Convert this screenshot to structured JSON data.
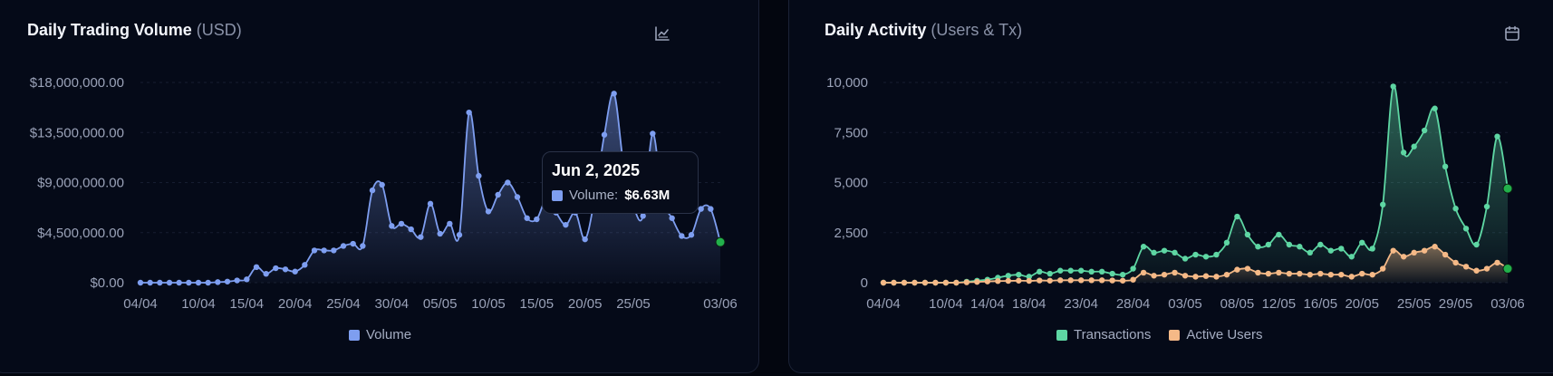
{
  "volume_card": {
    "title": "Daily Trading Volume",
    "subtitle": "(USD)",
    "icon": "line-chart-icon",
    "legend": "Volume",
    "tooltip": {
      "date": "Jun 2, 2025",
      "label": "Volume:",
      "value": "$6.63M"
    }
  },
  "activity_card": {
    "title": "Daily Activity",
    "subtitle": "(Users & Tx)",
    "icon": "calendar-icon",
    "legend": [
      "Transactions",
      "Active Users"
    ]
  },
  "chart_data": [
    {
      "type": "area",
      "y_ticks": [
        "$0.00",
        "$4,500,000.00",
        "$9,000,000.00",
        "$13,500,000.00",
        "$18,000,000.00"
      ],
      "ylim": [
        0,
        18000000
      ],
      "x_ticks": [
        "04/04",
        "10/04",
        "15/04",
        "20/04",
        "25/04",
        "30/04",
        "05/05",
        "10/05",
        "15/05",
        "20/05",
        "25/05",
        "03/06"
      ],
      "grid": "horizontal dashed",
      "legend_position": "bottom",
      "color": "#7e9ef0",
      "series": [
        {
          "name": "Volume",
          "x": [
            "04/04",
            "05/04",
            "06/04",
            "07/04",
            "08/04",
            "09/04",
            "10/04",
            "11/04",
            "12/04",
            "13/04",
            "14/04",
            "15/04",
            "16/04",
            "17/04",
            "18/04",
            "19/04",
            "20/04",
            "21/04",
            "22/04",
            "23/04",
            "24/04",
            "25/04",
            "26/04",
            "27/04",
            "28/04",
            "29/04",
            "30/04",
            "01/05",
            "02/05",
            "03/05",
            "04/05",
            "05/05",
            "06/05",
            "07/05",
            "08/05",
            "09/05",
            "10/05",
            "11/05",
            "12/05",
            "13/05",
            "14/05",
            "15/05",
            "16/05",
            "17/05",
            "18/05",
            "19/05",
            "20/05",
            "21/05",
            "22/05",
            "23/05",
            "24/05",
            "25/05",
            "26/05",
            "27/05",
            "28/05",
            "29/05",
            "30/05",
            "31/05",
            "01/06",
            "02/06",
            "03/06"
          ],
          "values": [
            0,
            0,
            0,
            0,
            0,
            0,
            0,
            0,
            50000,
            100000,
            200000,
            300000,
            1400000,
            800000,
            1300000,
            1200000,
            1000000,
            1600000,
            2900000,
            2900000,
            2900000,
            3300000,
            3500000,
            3300000,
            8300000,
            8800000,
            5100000,
            5300000,
            4800000,
            4100000,
            7100000,
            4400000,
            5300000,
            4300000,
            15300000,
            9600000,
            6400000,
            7900000,
            9000000,
            7700000,
            5800000,
            5700000,
            7500000,
            6300000,
            5200000,
            6300000,
            3900000,
            7600000,
            13300000,
            17000000,
            10500000,
            6900000,
            6000000,
            13400000,
            7500000,
            5800000,
            4200000,
            4300000,
            6630000,
            6630000,
            3650000
          ]
        }
      ]
    },
    {
      "type": "area",
      "y_ticks": [
        "0",
        "2,500",
        "5,000",
        "7,500",
        "10,000"
      ],
      "ylim": [
        0,
        10000
      ],
      "x_ticks": [
        "04/04",
        "10/04",
        "14/04",
        "18/04",
        "23/04",
        "28/04",
        "03/05",
        "08/05",
        "12/05",
        "16/05",
        "20/05",
        "25/05",
        "29/05",
        "03/06"
      ],
      "grid": "horizontal dashed",
      "legend_position": "bottom",
      "series": [
        {
          "name": "Transactions",
          "color": "#5ed6a3",
          "x": [
            "04/04",
            "05/04",
            "06/04",
            "07/04",
            "08/04",
            "09/04",
            "10/04",
            "11/04",
            "12/04",
            "13/04",
            "14/04",
            "15/04",
            "16/04",
            "17/04",
            "18/04",
            "19/04",
            "20/04",
            "21/04",
            "22/04",
            "23/04",
            "24/04",
            "25/04",
            "26/04",
            "27/04",
            "28/04",
            "29/04",
            "30/04",
            "01/05",
            "02/05",
            "03/05",
            "04/05",
            "05/05",
            "06/05",
            "07/05",
            "08/05",
            "09/05",
            "10/05",
            "11/05",
            "12/05",
            "13/05",
            "14/05",
            "15/05",
            "16/05",
            "17/05",
            "18/05",
            "19/05",
            "20/05",
            "21/05",
            "22/05",
            "23/05",
            "24/05",
            "25/05",
            "26/05",
            "27/05",
            "28/05",
            "29/05",
            "30/05",
            "31/05",
            "01/06",
            "02/06",
            "03/06"
          ],
          "values": [
            0,
            0,
            0,
            0,
            0,
            0,
            0,
            0,
            50,
            100,
            150,
            250,
            350,
            400,
            300,
            550,
            450,
            600,
            600,
            600,
            550,
            550,
            450,
            400,
            700,
            1800,
            1500,
            1600,
            1500,
            1200,
            1400,
            1300,
            1400,
            2000,
            3300,
            2400,
            1800,
            1900,
            2400,
            1900,
            1800,
            1500,
            1900,
            1600,
            1700,
            1300,
            2000,
            1700,
            3900,
            9800,
            6500,
            6800,
            7600,
            8700,
            5800,
            3700,
            2700,
            1900,
            3800,
            7300,
            4700
          ]
        },
        {
          "name": "Active Users",
          "color": "#f5b987",
          "x": [
            "04/04",
            "05/04",
            "06/04",
            "07/04",
            "08/04",
            "09/04",
            "10/04",
            "11/04",
            "12/04",
            "13/04",
            "14/04",
            "15/04",
            "16/04",
            "17/04",
            "18/04",
            "19/04",
            "20/04",
            "21/04",
            "22/04",
            "23/04",
            "24/04",
            "25/04",
            "26/04",
            "27/04",
            "28/04",
            "29/04",
            "30/04",
            "01/05",
            "02/05",
            "03/05",
            "04/05",
            "05/05",
            "06/05",
            "07/05",
            "08/05",
            "09/05",
            "10/05",
            "11/05",
            "12/05",
            "13/05",
            "14/05",
            "15/05",
            "16/05",
            "17/05",
            "18/05",
            "19/05",
            "20/05",
            "21/05",
            "22/05",
            "23/05",
            "24/05",
            "25/05",
            "26/05",
            "27/05",
            "28/05",
            "29/05",
            "30/05",
            "31/05",
            "01/06",
            "02/06",
            "03/06"
          ],
          "values": [
            0,
            0,
            0,
            0,
            0,
            0,
            0,
            0,
            20,
            40,
            60,
            80,
            90,
            100,
            90,
            110,
            100,
            120,
            120,
            120,
            120,
            120,
            110,
            100,
            150,
            500,
            350,
            400,
            500,
            350,
            300,
            330,
            300,
            400,
            650,
            700,
            500,
            450,
            500,
            450,
            450,
            400,
            450,
            400,
            400,
            300,
            450,
            400,
            700,
            1600,
            1300,
            1500,
            1600,
            1800,
            1400,
            1000,
            800,
            600,
            700,
            1000,
            700
          ]
        }
      ]
    }
  ]
}
